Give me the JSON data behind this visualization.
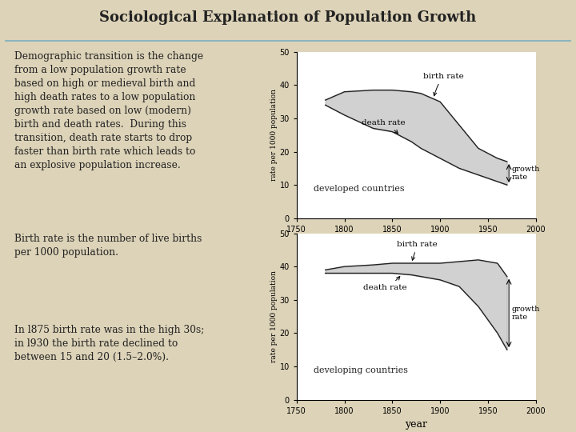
{
  "title": "Sociological Explanation of Population Growth",
  "bg_color": "#ddd3b8",
  "chart_bg": "#ffffff",
  "text_color": "#222222",
  "body_text_1": "Demographic transition is the change\nfrom a low population growth rate\nbased on high or medieval birth and\nhigh death rates to a low population\ngrowth rate based on low (modern)\nbirth and death rates.  During this\ntransition, death rate starts to drop\nfaster than birth rate which leads to\nan explosive population increase.",
  "body_text_2": "Birth rate is the number of live births\nper 1000 population.",
  "body_text_3": "In l875 birth rate was in the high 30s;\nin l930 the birth rate declined to\nbetween 15 and 20 (1.5–2.0%).",
  "developed": {
    "title": "developed countries",
    "years": [
      1780,
      1800,
      1830,
      1850,
      1870,
      1880,
      1900,
      1920,
      1940,
      1960,
      1970
    ],
    "birth_rate": [
      35.5,
      38,
      38.5,
      38.5,
      38,
      37.5,
      35,
      28,
      21,
      18,
      17
    ],
    "death_rate": [
      34,
      31,
      27,
      26,
      23,
      21,
      18,
      15,
      13,
      11,
      10
    ],
    "ylim": [
      0,
      50
    ],
    "ylabel": "rate per 1000 population"
  },
  "developing": {
    "title": "developing countries",
    "years": [
      1780,
      1800,
      1830,
      1850,
      1870,
      1880,
      1900,
      1920,
      1940,
      1960,
      1970
    ],
    "birth_rate": [
      39,
      40,
      40.5,
      41,
      41,
      41,
      41,
      41.5,
      42,
      41,
      37
    ],
    "death_rate": [
      38,
      38,
      38,
      38,
      37.5,
      37,
      36,
      34,
      28,
      20,
      15
    ],
    "ylim": [
      0,
      50
    ],
    "ylabel": "rate per 1000 population"
  },
  "xlabel": "year",
  "fill_color": "#999999",
  "fill_alpha": 0.45,
  "line_color": "#222222",
  "line_width": 1.0,
  "divider_color": "#7ab0c0"
}
